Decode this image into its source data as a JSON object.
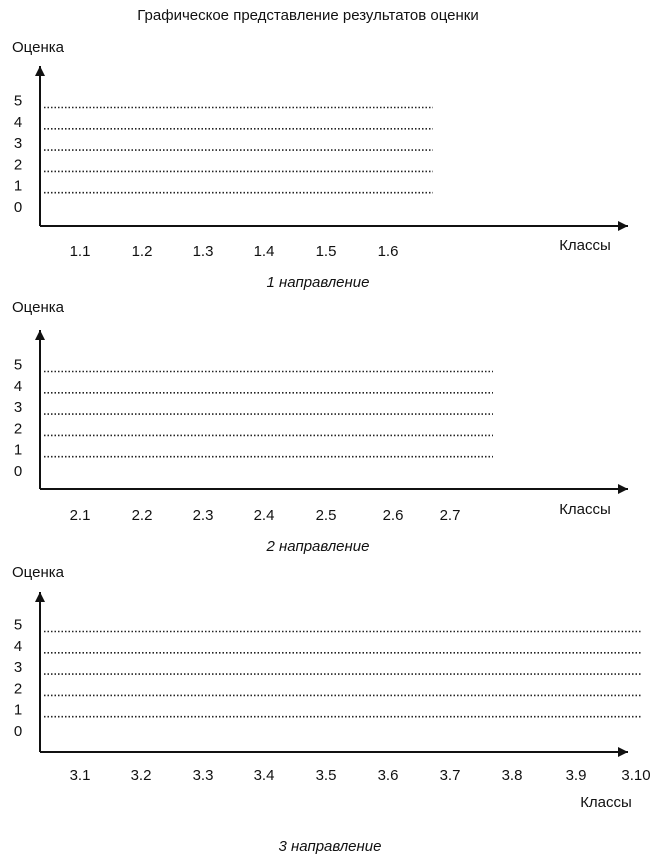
{
  "title": "Графическое представление результатов оценки",
  "panels": [
    {
      "y_label": "Оценка",
      "y_ticks": [
        0,
        1,
        2,
        3,
        4,
        5
      ],
      "x_label": "Классы",
      "categories": [
        "1.1",
        "1.2",
        "1.3",
        "1.4",
        "1.5",
        "1.6"
      ],
      "caption": "1 направление"
    },
    {
      "y_label": "Оценка",
      "y_ticks": [
        0,
        1,
        2,
        3,
        4,
        5
      ],
      "x_label": "Классы",
      "categories": [
        "2.1",
        "2.2",
        "2.3",
        "2.4",
        "2.5",
        "2.6",
        "2.7"
      ],
      "caption": "2 направление"
    },
    {
      "y_label": "Оценка",
      "y_ticks": [
        0,
        1,
        2,
        3,
        4,
        5
      ],
      "x_label": "Классы",
      "categories": [
        "3.1",
        "3.2",
        "3.3",
        "3.4",
        "3.5",
        "3.6",
        "3.7",
        "3.8",
        "3.9",
        "3.10"
      ],
      "caption": "3 направление"
    }
  ]
}
